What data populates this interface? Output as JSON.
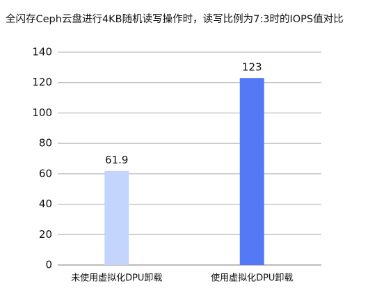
{
  "chart_data": {
    "type": "bar",
    "title": "全闪存Ceph云盘进行4KB随机读写操作时，读写比例为7:3时的IOPS值对比",
    "categories": [
      "未使用虚拟化DPU卸载",
      "使用虚拟化DPU卸载"
    ],
    "values": [
      61.9,
      123
    ],
    "colors": [
      "#c4d5fd",
      "#5479f7"
    ],
    "ylim": [
      0,
      140
    ],
    "yticks": [
      0,
      20,
      40,
      60,
      80,
      100,
      120,
      140
    ],
    "grid": true
  }
}
